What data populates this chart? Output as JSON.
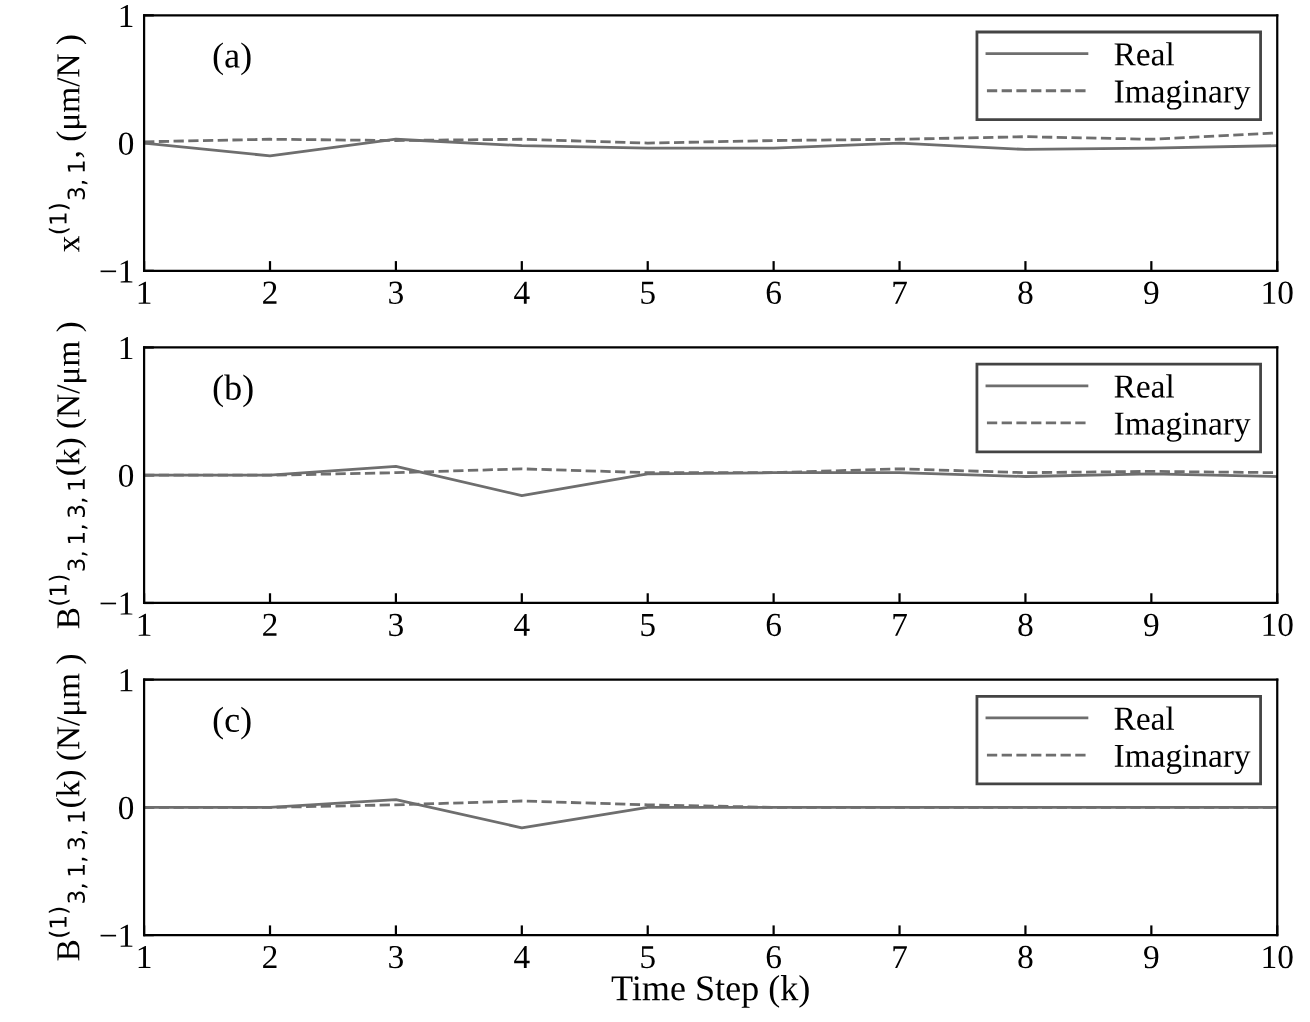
{
  "chart_data": [
    {
      "type": "line",
      "x": [
        1,
        2,
        3,
        4,
        5,
        6,
        7,
        8,
        9,
        10
      ],
      "ylabel": "x$^{(1)}$$_{3,1}$, (μm/N )",
      "annotations": [
        "(a)"
      ],
      "xlim": [
        1,
        10
      ],
      "ylim": [
        -1,
        1
      ],
      "xticks": [
        1,
        2,
        3,
        4,
        5,
        6,
        7,
        8,
        9,
        10
      ],
      "yticks": [
        -1,
        0,
        1
      ],
      "legend": "top right",
      "grid": false,
      "series": [
        {
          "name": "Real",
          "color": "#6e6e6e",
          "line_style": "solid",
          "values": [
            0,
            -0.1,
            0.03,
            -0.02,
            -0.04,
            -0.04,
            0,
            -0.05,
            -0.04,
            -0.02
          ]
        },
        {
          "name": "Imaginary",
          "color": "#6e6e6e",
          "line_style": "dashed",
          "values": [
            0.01,
            0.03,
            0.02,
            0.03,
            0,
            0.02,
            0.03,
            0.05,
            0.03,
            0.08
          ]
        }
      ]
    },
    {
      "type": "line",
      "x": [
        1,
        2,
        3,
        4,
        5,
        6,
        7,
        8,
        9,
        10
      ],
      "ylabel": "B$^{(1)}$$_{3,1,3,1}$(k) (N/μm )",
      "annotations": [
        "(b)"
      ],
      "xlim": [
        1,
        10
      ],
      "ylim": [
        -1,
        1
      ],
      "xticks": [
        1,
        2,
        3,
        4,
        5,
        6,
        7,
        8,
        9,
        10
      ],
      "yticks": [
        -1,
        0,
        1
      ],
      "legend": "top right",
      "grid": false,
      "series": [
        {
          "name": "Real",
          "color": "#6e6e6e",
          "line_style": "solid",
          "values": [
            0,
            0,
            0.07,
            -0.16,
            0.01,
            0.02,
            0.02,
            -0.01,
            0.01,
            -0.01
          ]
        },
        {
          "name": "Imaginary",
          "color": "#6e6e6e",
          "line_style": "dashed",
          "values": [
            0,
            0,
            0.02,
            0.05,
            0.02,
            0.02,
            0.05,
            0.02,
            0.03,
            0.02
          ]
        }
      ]
    },
    {
      "type": "line",
      "x": [
        1,
        2,
        3,
        4,
        5,
        6,
        7,
        8,
        9,
        10
      ],
      "xlabel": "Time Step (k)",
      "ylabel": "B$^{(1)}$$_{3,1,3,1}$(k) (N/μm )",
      "annotations": [
        "(c)"
      ],
      "xlim": [
        1,
        10
      ],
      "ylim": [
        -1,
        1
      ],
      "xticks": [
        1,
        2,
        3,
        4,
        5,
        6,
        7,
        8,
        9,
        10
      ],
      "yticks": [
        -1,
        0,
        1
      ],
      "legend": "top right",
      "grid": false,
      "series": [
        {
          "name": "Real",
          "color": "#6e6e6e",
          "line_style": "solid",
          "values": [
            0,
            0,
            0.06,
            -0.16,
            0,
            0,
            0,
            0,
            0,
            0
          ]
        },
        {
          "name": "Imaginary",
          "color": "#6e6e6e",
          "line_style": "dashed",
          "values": [
            0,
            0,
            0.02,
            0.05,
            0.02,
            0,
            0,
            0,
            0,
            0
          ]
        }
      ]
    }
  ]
}
